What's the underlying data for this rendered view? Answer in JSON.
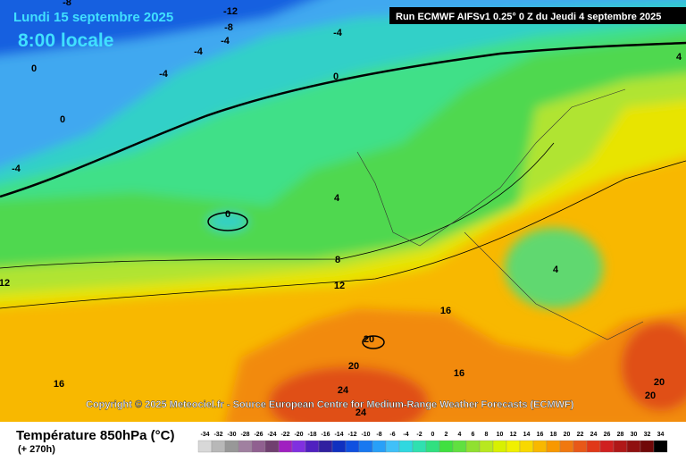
{
  "header": {
    "date": "Lundi 15 septembre 2025",
    "time": "8:00 locale",
    "run": "Run ECMWF AIFSv1 0.25° 0 Z du Jeudi 4 septembre 2025"
  },
  "contour_labels": [
    -8,
    -12,
    -8,
    -4,
    -4,
    -4,
    0,
    -4,
    -4,
    0,
    0,
    0,
    4,
    8,
    12,
    4,
    16,
    20,
    20,
    16,
    24,
    24,
    20,
    20,
    12,
    16,
    4
  ],
  "copyright": "Copyright © 2025 Meteociel.fr - Source European Centre for Medium-Range Weather Forecasts (ECMWF)",
  "legend": {
    "title": "Température 850hPa (°C)",
    "subtitle": "(+ 270h)",
    "scale": [
      -34,
      -32,
      -30,
      -28,
      -26,
      -24,
      -22,
      -20,
      -18,
      -16,
      -14,
      -12,
      -10,
      -8,
      -6,
      -4,
      -2,
      0,
      2,
      4,
      6,
      8,
      10,
      12,
      14,
      16,
      18,
      20,
      22,
      24,
      26,
      28,
      30,
      32,
      34
    ],
    "colors": [
      "#d8d8d8",
      "#b8b8b8",
      "#989898",
      "#a080a0",
      "#906090",
      "#704070",
      "#a020c0",
      "#8030e0",
      "#5020c0",
      "#3020a0",
      "#1030c0",
      "#1050e0",
      "#1878f0",
      "#28a0f8",
      "#40c0f8",
      "#30d8e0",
      "#30e0b0",
      "#30e080",
      "#40e040",
      "#60e040",
      "#90e030",
      "#b8e820",
      "#d8f000",
      "#f0f000",
      "#f8d800",
      "#f8b800",
      "#f89800",
      "#f07810",
      "#e85818",
      "#e03818",
      "#d02020",
      "#b01818",
      "#901010",
      "#700808",
      "#000000"
    ]
  }
}
